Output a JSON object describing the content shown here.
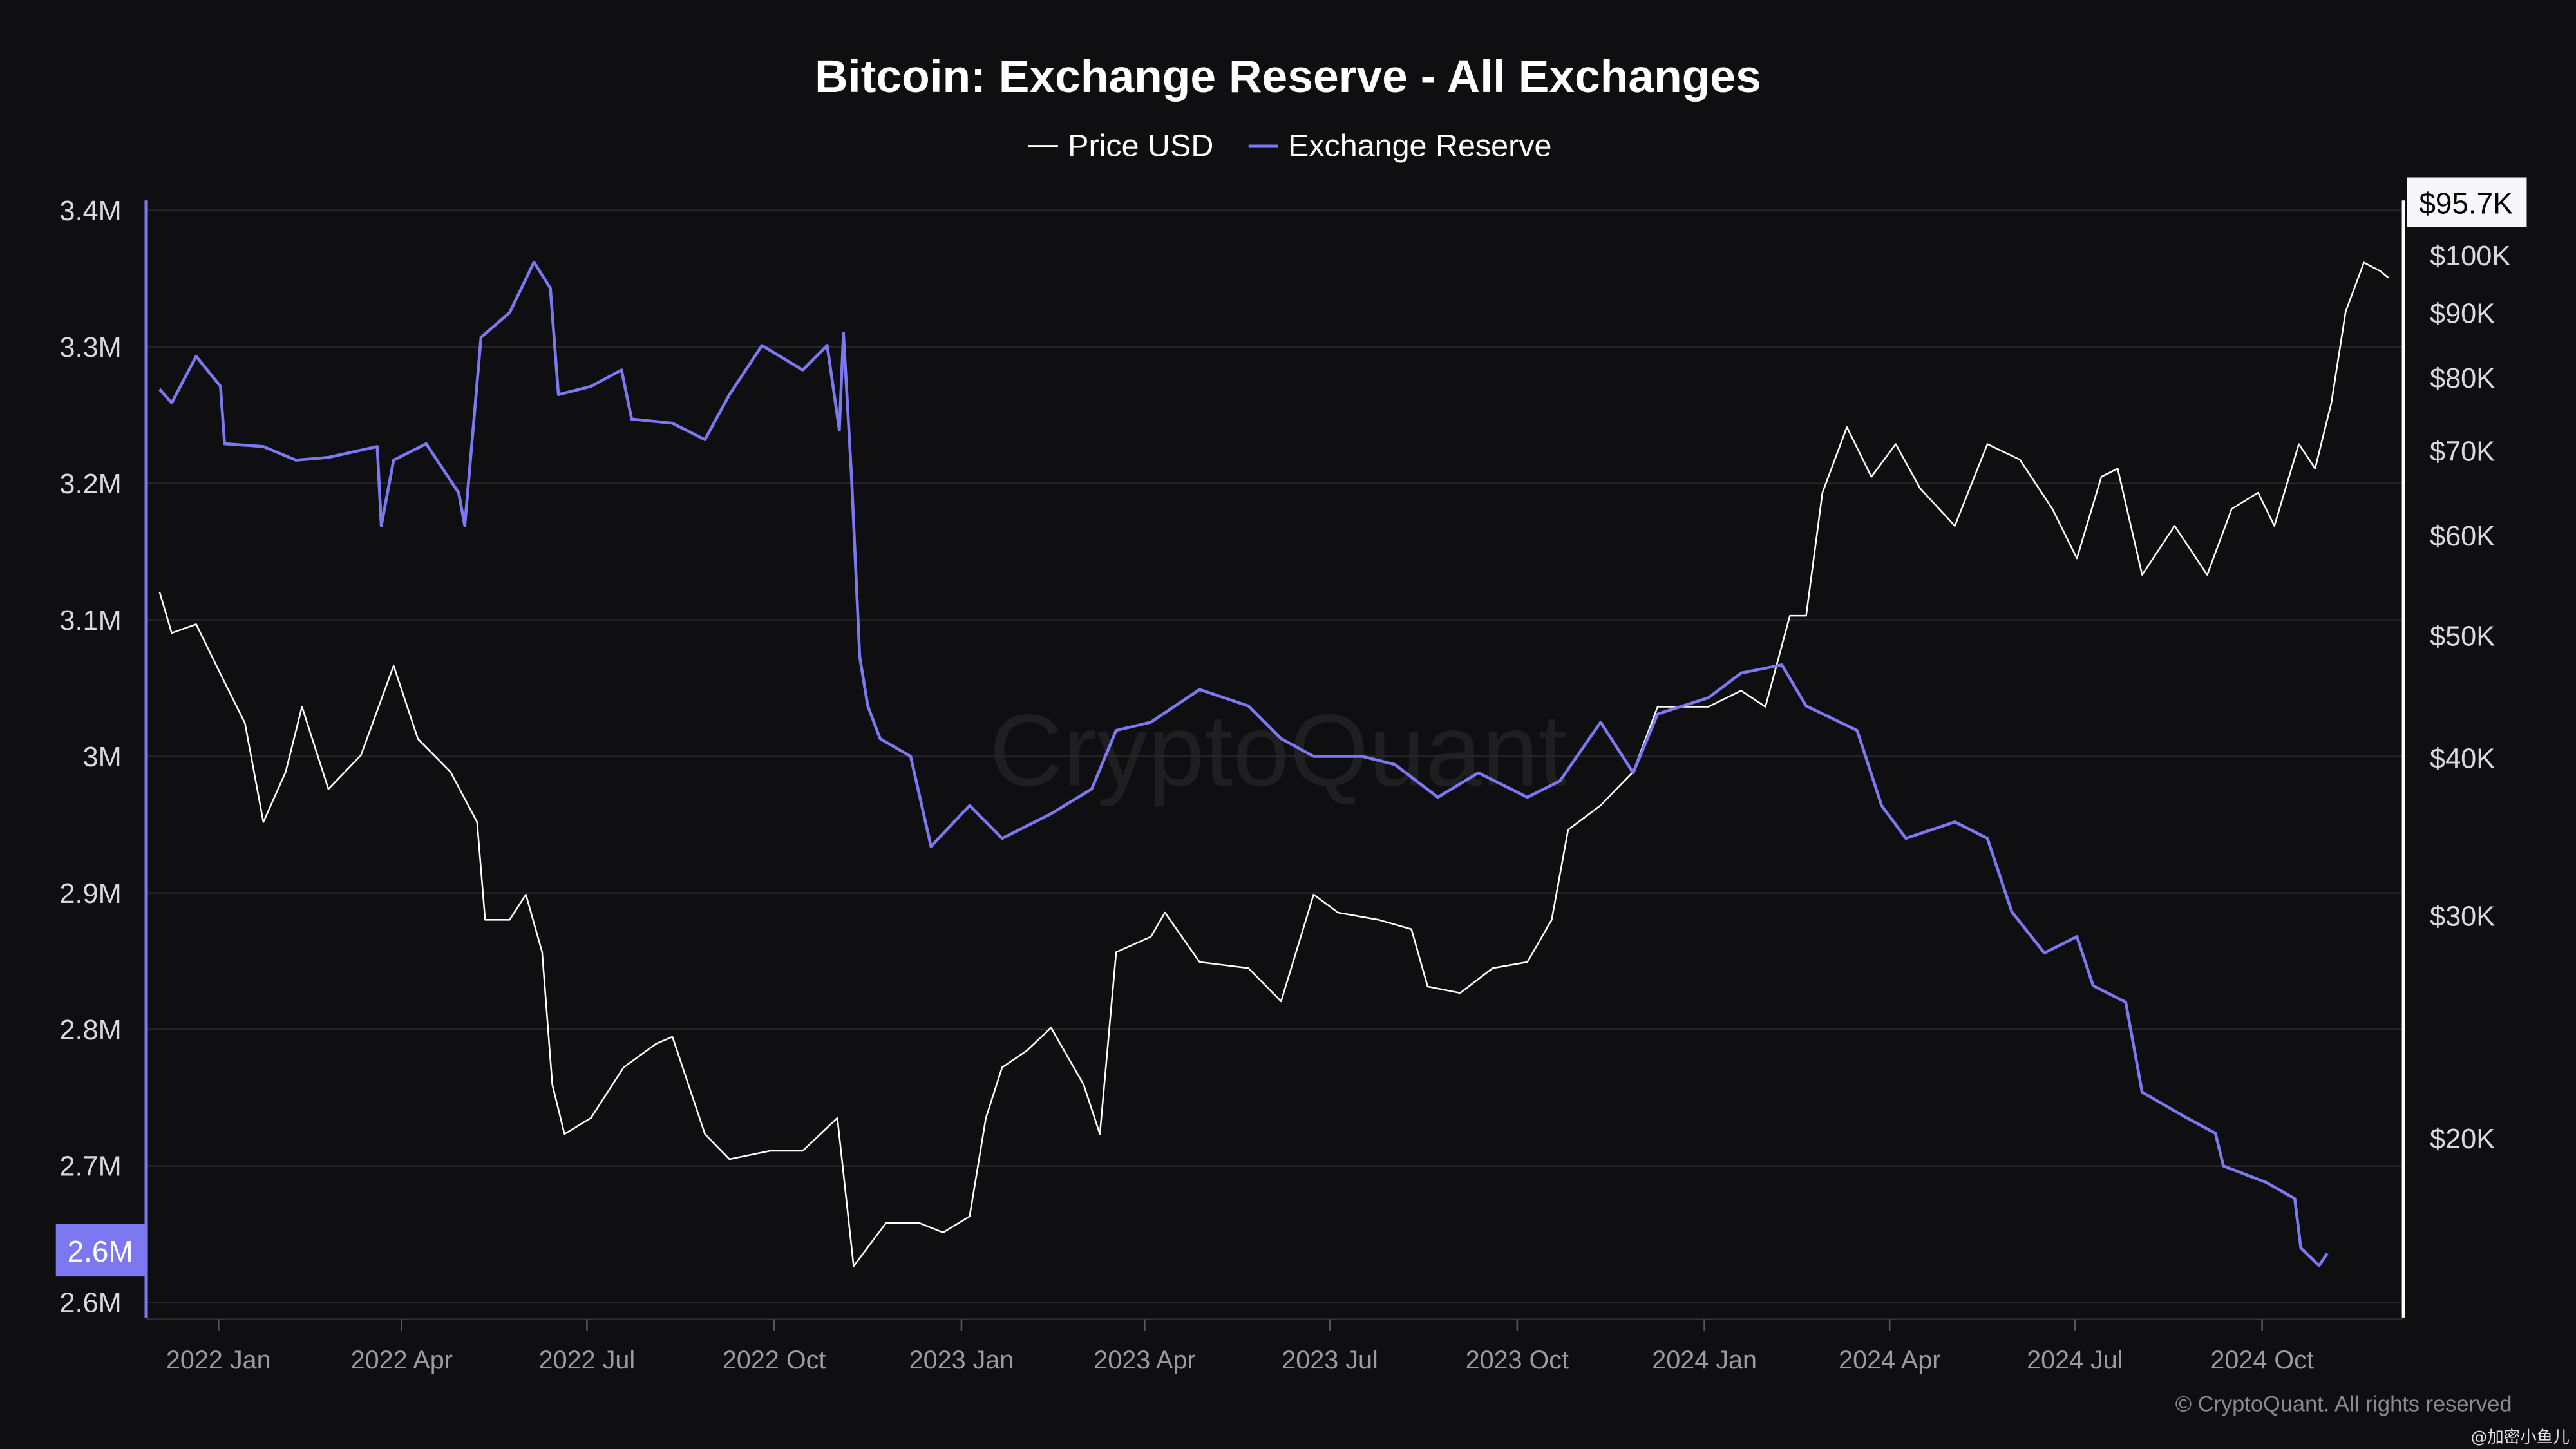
{
  "chart_data": {
    "type": "line",
    "title": "Bitcoin: Exchange Reserve - All Exchanges",
    "legend": {
      "position": "top-center",
      "entries": [
        "Price USD",
        "Exchange Reserve"
      ]
    },
    "colors": {
      "price": "#ffffff",
      "reserve": "#7b78f0",
      "background": "#0f0f12",
      "grid": "#26262b"
    },
    "watermark": "CryptoQuant",
    "copyright": "© CryptoQuant. All rights reserved",
    "credit": "@加密小鱼儿",
    "grid": true,
    "x_axis": {
      "type": "date",
      "ticks": [
        "2022 Jan",
        "2022 Apr",
        "2022 Jul",
        "2022 Oct",
        "2023 Jan",
        "2023 Apr",
        "2023 Jul",
        "2023 Oct",
        "2024 Jan",
        "2024 Apr",
        "2024 Jul",
        "2024 Oct"
      ],
      "tick_dates": [
        "2022-01-01",
        "2022-04-01",
        "2022-07-01",
        "2022-10-01",
        "2023-01-01",
        "2023-04-01",
        "2023-07-01",
        "2023-10-01",
        "2024-01-01",
        "2024-04-01",
        "2024-07-01",
        "2024-10-01"
      ]
    },
    "y_left": {
      "label": "",
      "unit": "BTC",
      "range": [
        2600000,
        3400000
      ],
      "ticks": [
        "3.4M",
        "3.3M",
        "3.2M",
        "3.1M",
        "3M",
        "2.9M",
        "2.8M",
        "2.7M",
        "2.6M"
      ],
      "tick_values": [
        3.4,
        3.3,
        3.2,
        3.1,
        3.0,
        2.9,
        2.8,
        2.7,
        2.6
      ],
      "current_label": "2.6M"
    },
    "y_right": {
      "label": "",
      "scale": "log",
      "range": [
        13000,
        108000
      ],
      "ticks": [
        "$100K",
        "$90K",
        "$80K",
        "$70K",
        "$60K",
        "$50K",
        "$40K",
        "$30K",
        "$20K"
      ],
      "tick_values": [
        100,
        90,
        80,
        70,
        60,
        50,
        40,
        30,
        20
      ],
      "current_label": "$95.7K"
    },
    "series": [
      {
        "name": "Exchange Reserve",
        "unit": "M BTC",
        "axis": "left",
        "points": [
          [
            "2021-12-03",
            3.269
          ],
          [
            "2021-12-09",
            3.259
          ],
          [
            "2021-12-21",
            3.293
          ],
          [
            "2022-01-02",
            3.271
          ],
          [
            "2022-01-04",
            3.229
          ],
          [
            "2022-01-23",
            3.227
          ],
          [
            "2022-02-08",
            3.217
          ],
          [
            "2022-02-24",
            3.219
          ],
          [
            "2022-03-20",
            3.227
          ],
          [
            "2022-03-22",
            3.169
          ],
          [
            "2022-03-28",
            3.217
          ],
          [
            "2022-04-13",
            3.229
          ],
          [
            "2022-04-29",
            3.193
          ],
          [
            "2022-05-02",
            3.169
          ],
          [
            "2022-05-10",
            3.307
          ],
          [
            "2022-05-24",
            3.325
          ],
          [
            "2022-06-05",
            3.362
          ],
          [
            "2022-06-13",
            3.343
          ],
          [
            "2022-06-17",
            3.265
          ],
          [
            "2022-07-03",
            3.271
          ],
          [
            "2022-07-18",
            3.283
          ],
          [
            "2022-07-23",
            3.247
          ],
          [
            "2022-08-12",
            3.244
          ],
          [
            "2022-08-28",
            3.232
          ],
          [
            "2022-09-09",
            3.265
          ],
          [
            "2022-09-25",
            3.301
          ],
          [
            "2022-10-15",
            3.283
          ],
          [
            "2022-10-27",
            3.301
          ],
          [
            "2022-11-02",
            3.239
          ],
          [
            "2022-11-04",
            3.31
          ],
          [
            "2022-11-08",
            3.205
          ],
          [
            "2022-11-12",
            3.073
          ],
          [
            "2022-11-16",
            3.037
          ],
          [
            "2022-11-22",
            3.013
          ],
          [
            "2022-12-07",
            3.0
          ],
          [
            "2022-12-17",
            2.934
          ],
          [
            "2023-01-05",
            2.964
          ],
          [
            "2023-01-21",
            2.94
          ],
          [
            "2023-02-14",
            2.958
          ],
          [
            "2023-03-06",
            2.976
          ],
          [
            "2023-03-18",
            3.019
          ],
          [
            "2023-04-04",
            3.025
          ],
          [
            "2023-04-28",
            3.049
          ],
          [
            "2023-05-22",
            3.037
          ],
          [
            "2023-06-07",
            3.013
          ],
          [
            "2023-06-23",
            3.0
          ],
          [
            "2023-07-17",
            3.0
          ],
          [
            "2023-08-02",
            2.994
          ],
          [
            "2023-08-23",
            2.97
          ],
          [
            "2023-09-12",
            2.988
          ],
          [
            "2023-10-06",
            2.97
          ],
          [
            "2023-10-22",
            2.982
          ],
          [
            "2023-11-11",
            3.025
          ],
          [
            "2023-11-27",
            2.988
          ],
          [
            "2023-12-09",
            3.031
          ],
          [
            "2024-01-03",
            3.043
          ],
          [
            "2024-01-19",
            3.061
          ],
          [
            "2024-02-08",
            3.067
          ],
          [
            "2024-02-20",
            3.037
          ],
          [
            "2024-03-16",
            3.019
          ],
          [
            "2024-03-28",
            2.964
          ],
          [
            "2024-04-09",
            2.94
          ],
          [
            "2024-05-03",
            2.952
          ],
          [
            "2024-05-19",
            2.94
          ],
          [
            "2024-05-31",
            2.886
          ],
          [
            "2024-06-16",
            2.856
          ],
          [
            "2024-07-02",
            2.868
          ],
          [
            "2024-07-10",
            2.832
          ],
          [
            "2024-07-26",
            2.82
          ],
          [
            "2024-08-03",
            2.754
          ],
          [
            "2024-08-24",
            2.736
          ],
          [
            "2024-09-08",
            2.724
          ],
          [
            "2024-09-12",
            2.7
          ],
          [
            "2024-10-03",
            2.688
          ],
          [
            "2024-10-17",
            2.676
          ],
          [
            "2024-10-20",
            2.64
          ],
          [
            "2024-10-29",
            2.627
          ],
          [
            "2024-11-02",
            2.636
          ]
        ]
      },
      {
        "name": "Price USD",
        "unit": "K USD",
        "axis": "right",
        "points": [
          [
            "2021-12-03",
            54.0
          ],
          [
            "2021-12-09",
            50.1
          ],
          [
            "2021-12-21",
            50.9
          ],
          [
            "2022-01-02",
            46.5
          ],
          [
            "2022-01-14",
            42.5
          ],
          [
            "2022-01-23",
            35.5
          ],
          [
            "2022-02-03",
            38.9
          ],
          [
            "2022-02-11",
            43.8
          ],
          [
            "2022-02-24",
            37.7
          ],
          [
            "2022-03-12",
            40.1
          ],
          [
            "2022-03-28",
            47.2
          ],
          [
            "2022-04-09",
            41.3
          ],
          [
            "2022-04-25",
            38.9
          ],
          [
            "2022-05-08",
            35.5
          ],
          [
            "2022-05-12",
            29.7
          ],
          [
            "2022-05-24",
            29.7
          ],
          [
            "2022-06-01",
            31.1
          ],
          [
            "2022-06-09",
            28.0
          ],
          [
            "2022-06-14",
            22.0
          ],
          [
            "2022-06-20",
            20.1
          ],
          [
            "2022-07-03",
            20.7
          ],
          [
            "2022-07-19",
            22.7
          ],
          [
            "2022-08-04",
            23.7
          ],
          [
            "2022-08-12",
            24.0
          ],
          [
            "2022-08-28",
            20.1
          ],
          [
            "2022-09-09",
            19.2
          ],
          [
            "2022-09-29",
            19.5
          ],
          [
            "2022-10-15",
            19.5
          ],
          [
            "2022-11-01",
            20.7
          ],
          [
            "2022-11-09",
            15.8
          ],
          [
            "2022-11-25",
            17.1
          ],
          [
            "2022-12-11",
            17.1
          ],
          [
            "2022-12-23",
            16.8
          ],
          [
            "2023-01-05",
            17.3
          ],
          [
            "2023-01-13",
            20.7
          ],
          [
            "2023-01-21",
            22.7
          ],
          [
            "2023-02-02",
            23.4
          ],
          [
            "2023-02-14",
            24.4
          ],
          [
            "2023-03-02",
            22.0
          ],
          [
            "2023-03-10",
            20.1
          ],
          [
            "2023-03-18",
            28.0
          ],
          [
            "2023-04-04",
            28.8
          ],
          [
            "2023-04-11",
            30.1
          ],
          [
            "2023-04-28",
            27.5
          ],
          [
            "2023-05-22",
            27.2
          ],
          [
            "2023-06-07",
            25.6
          ],
          [
            "2023-06-23",
            31.1
          ],
          [
            "2023-07-05",
            30.1
          ],
          [
            "2023-07-25",
            29.7
          ],
          [
            "2023-08-10",
            29.2
          ],
          [
            "2023-08-18",
            26.3
          ],
          [
            "2023-09-03",
            26.0
          ],
          [
            "2023-09-19",
            27.2
          ],
          [
            "2023-10-06",
            27.5
          ],
          [
            "2023-10-18",
            29.7
          ],
          [
            "2023-10-26",
            35.0
          ],
          [
            "2023-11-11",
            36.6
          ],
          [
            "2023-11-27",
            38.9
          ],
          [
            "2023-12-09",
            43.8
          ],
          [
            "2024-01-03",
            43.8
          ],
          [
            "2024-01-19",
            45.1
          ],
          [
            "2024-01-31",
            43.8
          ],
          [
            "2024-02-12",
            51.7
          ],
          [
            "2024-02-20",
            51.7
          ],
          [
            "2024-02-28",
            64.7
          ],
          [
            "2024-03-11",
            72.9
          ],
          [
            "2024-03-23",
            66.6
          ],
          [
            "2024-04-04",
            70.7
          ],
          [
            "2024-04-16",
            65.2
          ],
          [
            "2024-05-03",
            60.9
          ],
          [
            "2024-05-19",
            70.7
          ],
          [
            "2024-06-04",
            68.7
          ],
          [
            "2024-06-20",
            62.8
          ],
          [
            "2024-07-02",
            57.4
          ],
          [
            "2024-07-14",
            66.6
          ],
          [
            "2024-07-22",
            67.6
          ],
          [
            "2024-08-03",
            55.7
          ],
          [
            "2024-08-19",
            60.9
          ],
          [
            "2024-09-04",
            55.7
          ],
          [
            "2024-09-16",
            62.8
          ],
          [
            "2024-09-29",
            64.7
          ],
          [
            "2024-10-07",
            60.9
          ],
          [
            "2024-10-19",
            70.7
          ],
          [
            "2024-10-27",
            67.6
          ],
          [
            "2024-11-04",
            76.2
          ],
          [
            "2024-11-11",
            90.0
          ],
          [
            "2024-11-20",
            98.4
          ],
          [
            "2024-11-28",
            96.9
          ],
          [
            "2024-12-02",
            95.7
          ]
        ]
      }
    ]
  }
}
